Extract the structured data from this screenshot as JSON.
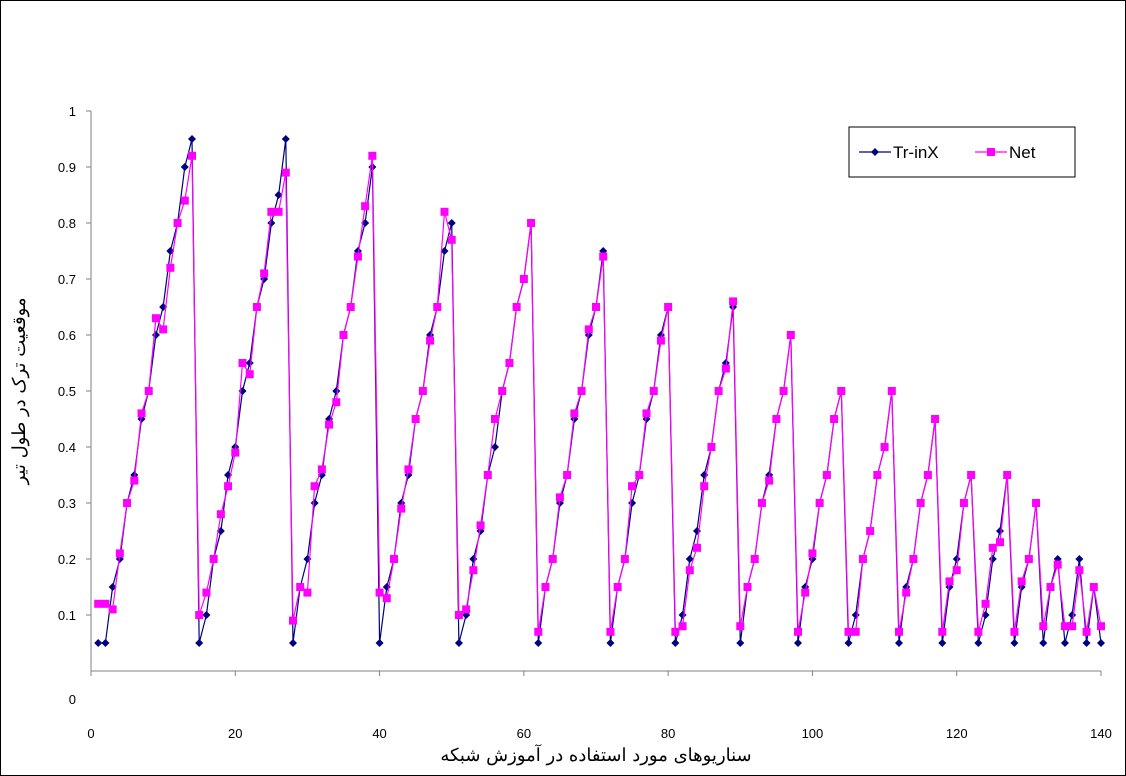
{
  "chart_data": {
    "type": "line",
    "title": "",
    "xlabel": "سناریوهای مورد استفاده در آموزش شبکه",
    "ylabel": "موقعیت ترک در طول تیر",
    "xlim": [
      0,
      140
    ],
    "ylim": [
      0,
      1
    ],
    "x_ticks": [
      0,
      20,
      40,
      60,
      80,
      100,
      120,
      140
    ],
    "y_ticks": [
      0,
      0.1,
      0.2,
      0.3,
      0.4,
      0.5,
      0.6,
      0.7,
      0.8,
      0.9,
      1
    ],
    "y_tick_labels": [
      "0",
      "0.1",
      "0.2",
      "0.3",
      "0.4",
      "0.5",
      "0.6",
      "0.7",
      "0.8",
      "0.9",
      "1"
    ],
    "x_tick_labels": [
      "0",
      "20",
      "40",
      "60",
      "80",
      "100",
      "120",
      "140"
    ],
    "grid": false,
    "legend": "top-right",
    "series": [
      {
        "name": "Tr-inX",
        "color": "#000080",
        "marker": "diamond",
        "x": [
          1,
          2,
          3,
          4,
          5,
          6,
          7,
          8,
          9,
          10,
          11,
          12,
          13,
          14,
          15,
          16,
          17,
          18,
          19,
          20,
          21,
          22,
          23,
          24,
          25,
          26,
          27,
          28,
          29,
          30,
          31,
          32,
          33,
          34,
          35,
          36,
          37,
          38,
          39,
          40,
          41,
          42,
          43,
          44,
          45,
          46,
          47,
          48,
          49,
          50,
          51,
          52,
          53,
          54,
          55,
          56,
          57,
          58,
          59,
          60,
          61,
          62,
          63,
          64,
          65,
          66,
          67,
          68,
          69,
          70,
          71,
          72,
          73,
          74,
          75,
          76,
          77,
          78,
          79,
          80,
          81,
          82,
          83,
          84,
          85,
          86,
          87,
          88,
          89,
          90,
          91,
          92,
          93,
          94,
          95,
          96,
          97,
          98,
          99,
          100,
          101,
          102,
          103,
          104,
          105,
          106,
          107,
          108,
          109,
          110,
          111,
          112,
          113,
          114,
          115,
          116,
          117,
          118,
          119,
          120,
          121,
          122,
          123,
          124,
          125,
          126,
          127,
          128,
          129,
          130,
          131,
          132,
          133,
          134,
          135,
          136,
          137,
          138,
          139,
          140
        ],
        "values": [
          0.05,
          0.05,
          0.15,
          0.2,
          0.3,
          0.35,
          0.45,
          0.5,
          0.6,
          0.65,
          0.75,
          0.8,
          0.9,
          0.95,
          0.05,
          0.1,
          0.2,
          0.25,
          0.35,
          0.4,
          0.5,
          0.55,
          0.65,
          0.7,
          0.8,
          0.85,
          0.95,
          0.05,
          0.15,
          0.2,
          0.3,
          0.35,
          0.45,
          0.5,
          0.6,
          0.65,
          0.75,
          0.8,
          0.9,
          0.05,
          0.15,
          0.2,
          0.3,
          0.35,
          0.45,
          0.5,
          0.6,
          0.65,
          0.75,
          0.8,
          0.05,
          0.1,
          0.2,
          0.25,
          0.35,
          0.4,
          0.5,
          0.55,
          0.65,
          0.7,
          0.8,
          0.05,
          0.15,
          0.2,
          0.3,
          0.35,
          0.45,
          0.5,
          0.6,
          0.65,
          0.75,
          0.05,
          0.15,
          0.2,
          0.3,
          0.35,
          0.45,
          0.5,
          0.6,
          0.65,
          0.05,
          0.1,
          0.2,
          0.25,
          0.35,
          0.4,
          0.5,
          0.55,
          0.65,
          0.05,
          0.15,
          0.2,
          0.3,
          0.35,
          0.45,
          0.5,
          0.6,
          0.05,
          0.15,
          0.2,
          0.3,
          0.35,
          0.45,
          0.5,
          0.05,
          0.1,
          0.2,
          0.25,
          0.35,
          0.4,
          0.5,
          0.05,
          0.15,
          0.2,
          0.3,
          0.35,
          0.45,
          0.05,
          0.15,
          0.2,
          0.3,
          0.35,
          0.05,
          0.1,
          0.2,
          0.25,
          0.35,
          0.05,
          0.15,
          0.2,
          0.3,
          0.05,
          0.15,
          0.2,
          0.05,
          0.1,
          0.2,
          0.05,
          0.15,
          0.05
        ]
      },
      {
        "name": "Net",
        "color": "#ff00ff",
        "marker": "square",
        "x": [
          1,
          2,
          3,
          4,
          5,
          6,
          7,
          8,
          9,
          10,
          11,
          12,
          13,
          14,
          15,
          16,
          17,
          18,
          19,
          20,
          21,
          22,
          23,
          24,
          25,
          26,
          27,
          28,
          29,
          30,
          31,
          32,
          33,
          34,
          35,
          36,
          37,
          38,
          39,
          40,
          41,
          42,
          43,
          44,
          45,
          46,
          47,
          48,
          49,
          50,
          51,
          52,
          53,
          54,
          55,
          56,
          57,
          58,
          59,
          60,
          61,
          62,
          63,
          64,
          65,
          66,
          67,
          68,
          69,
          70,
          71,
          72,
          73,
          74,
          75,
          76,
          77,
          78,
          79,
          80,
          81,
          82,
          83,
          84,
          85,
          86,
          87,
          88,
          89,
          90,
          91,
          92,
          93,
          94,
          95,
          96,
          97,
          98,
          99,
          100,
          101,
          102,
          103,
          104,
          105,
          106,
          107,
          108,
          109,
          110,
          111,
          112,
          113,
          114,
          115,
          116,
          117,
          118,
          119,
          120,
          121,
          122,
          123,
          124,
          125,
          126,
          127,
          128,
          129,
          130,
          131,
          132,
          133,
          134,
          135,
          136,
          137,
          138,
          139,
          140
        ],
        "values": [
          0.12,
          0.12,
          0.11,
          0.21,
          0.3,
          0.34,
          0.46,
          0.5,
          0.63,
          0.61,
          0.72,
          0.8,
          0.84,
          0.92,
          0.1,
          0.14,
          0.2,
          0.28,
          0.33,
          0.39,
          0.55,
          0.53,
          0.65,
          0.71,
          0.82,
          0.82,
          0.89,
          0.09,
          0.15,
          0.14,
          0.33,
          0.36,
          0.44,
          0.48,
          0.6,
          0.65,
          0.74,
          0.83,
          0.92,
          0.14,
          0.13,
          0.2,
          0.29,
          0.36,
          0.45,
          0.5,
          0.59,
          0.65,
          0.82,
          0.77,
          0.1,
          0.11,
          0.18,
          0.26,
          0.35,
          0.45,
          0.5,
          0.55,
          0.65,
          0.7,
          0.8,
          0.07,
          0.15,
          0.2,
          0.31,
          0.35,
          0.46,
          0.5,
          0.61,
          0.65,
          0.74,
          0.07,
          0.15,
          0.2,
          0.33,
          0.35,
          0.46,
          0.5,
          0.59,
          0.65,
          0.07,
          0.08,
          0.18,
          0.22,
          0.33,
          0.4,
          0.5,
          0.54,
          0.66,
          0.08,
          0.15,
          0.2,
          0.3,
          0.34,
          0.45,
          0.5,
          0.6,
          0.07,
          0.14,
          0.21,
          0.3,
          0.35,
          0.45,
          0.5,
          0.07,
          0.07,
          0.2,
          0.25,
          0.35,
          0.4,
          0.5,
          0.07,
          0.14,
          0.2,
          0.3,
          0.35,
          0.45,
          0.07,
          0.16,
          0.18,
          0.3,
          0.35,
          0.07,
          0.12,
          0.22,
          0.23,
          0.35,
          0.07,
          0.16,
          0.2,
          0.3,
          0.08,
          0.15,
          0.19,
          0.08,
          0.08,
          0.18,
          0.07,
          0.15,
          0.08
        ]
      }
    ]
  }
}
